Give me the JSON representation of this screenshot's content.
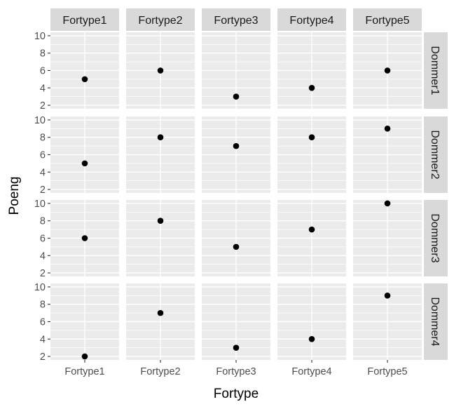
{
  "chart_data": {
    "type": "scatter",
    "facet_layout": "grid",
    "xlabel": "Fortype",
    "ylabel": "Poeng",
    "col_facets": [
      "Fortype1",
      "Fortype2",
      "Fortype3",
      "Fortype4",
      "Fortype5"
    ],
    "row_facets": [
      "Dommer1",
      "Dommer2",
      "Dommer3",
      "Dommer4"
    ],
    "x_categories": [
      "Fortype1",
      "Fortype2",
      "Fortype3",
      "Fortype4",
      "Fortype5"
    ],
    "ylim": [
      1.6,
      10.4
    ],
    "y_ticks": [
      2,
      4,
      6,
      8,
      10
    ],
    "y_tick_labels": [
      "2",
      "4",
      "6",
      "8",
      "10"
    ],
    "grid": true,
    "values": [
      [
        5,
        6,
        3,
        4,
        6
      ],
      [
        5,
        8,
        7,
        8,
        9
      ],
      [
        6,
        8,
        5,
        7,
        10
      ],
      [
        2,
        7,
        3,
        4,
        9
      ]
    ],
    "colors": {
      "panel_background": "#ebebeb",
      "strip_background": "#d9d9d9",
      "grid": "#ffffff",
      "point": "#000000"
    }
  }
}
